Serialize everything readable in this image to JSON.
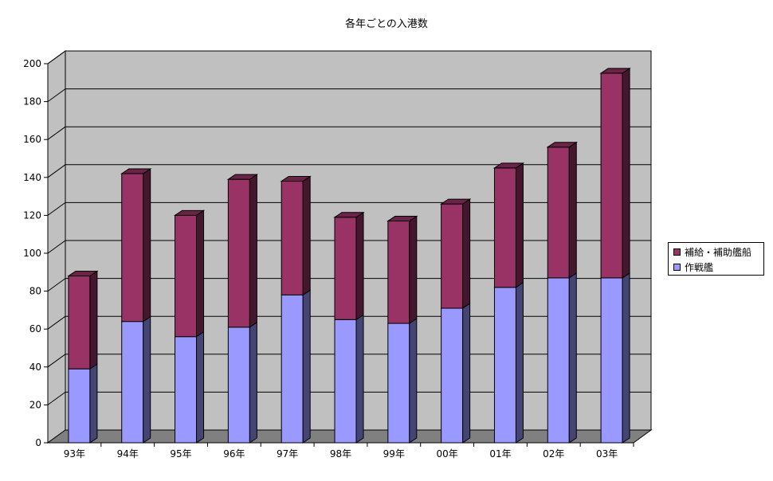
{
  "chart_data": {
    "type": "bar",
    "stacked": true,
    "three_d": true,
    "title": "各年ごとの入港数",
    "categories": [
      "93年",
      "94年",
      "95年",
      "96年",
      "97年",
      "98年",
      "99年",
      "00年",
      "01年",
      "02年",
      "03年"
    ],
    "series": [
      {
        "name": "作戦艦",
        "color": "#9999ff",
        "values": [
          39,
          64,
          56,
          61,
          78,
          65,
          63,
          71,
          82,
          87,
          87
        ]
      },
      {
        "name": "補給・補助艦船",
        "color": "#993366",
        "values": [
          49,
          78,
          64,
          78,
          60,
          54,
          54,
          55,
          63,
          69,
          108
        ]
      }
    ],
    "ylim": [
      0,
      200
    ],
    "yticks": [
      0,
      20,
      40,
      60,
      80,
      100,
      120,
      140,
      160,
      180,
      200
    ],
    "grid": true,
    "legend_position": "right",
    "wall_color": "#c0c0c0",
    "floor_color": "#808080"
  }
}
